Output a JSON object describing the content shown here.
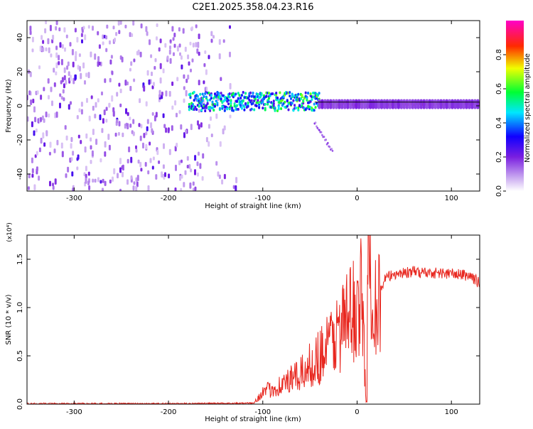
{
  "title": "C2E1.2025.358.04.23.R16",
  "chart_data": [
    {
      "type": "heatmap",
      "xlabel": "Height of straight line (km)",
      "ylabel": "Frequency (Hz)",
      "xlim": [
        -350,
        130
      ],
      "ylim": [
        -50,
        50
      ],
      "xticks": [
        -300,
        -200,
        -100,
        0,
        100
      ],
      "yticks": [
        -40,
        -20,
        0,
        20,
        40
      ],
      "colorbar": {
        "label": "Normalized spectral amplitude",
        "range": [
          0,
          1
        ],
        "ticks": [
          "0.0",
          "0.2",
          "0.4",
          "0.6",
          "0.8"
        ],
        "tick_values": [
          0,
          0.2,
          0.4,
          0.6,
          0.8
        ],
        "colors": [
          "#ffffff",
          "#8a2be2",
          "#0000ff",
          "#00ffff",
          "#00ff00",
          "#ffff00",
          "#ff0000",
          "#ff00ff"
        ]
      },
      "regions": [
        {
          "name": "noise",
          "x_range": [
            -350,
            -130
          ],
          "freq_range": [
            -50,
            50
          ],
          "amplitude": [
            0.05,
            0.25
          ]
        },
        {
          "name": "transition",
          "x_range": [
            -180,
            -40
          ],
          "freq_range": [
            -5,
            8
          ],
          "amplitude": [
            0.2,
            0.6
          ]
        },
        {
          "name": "tail",
          "x_range": [
            -45,
            -25
          ],
          "freq_range": [
            -28,
            -10
          ],
          "amplitude": [
            0.1,
            0.2
          ]
        },
        {
          "name": "signal",
          "x_range": [
            -40,
            130
          ],
          "freq_range": [
            0,
            2
          ],
          "amplitude": [
            0.6,
            1.0
          ]
        }
      ]
    },
    {
      "type": "line",
      "xlabel": "Height of straight line (km)",
      "ylabel": "SNR (10 * v/v)",
      "multiplier": "(x10⁴)",
      "xlim": [
        -350,
        130
      ],
      "ylim": [
        0,
        1.75
      ],
      "xticks": [
        -300,
        -200,
        -100,
        0,
        100
      ],
      "yticks": [
        "0.0",
        "0.5",
        "1.0",
        "1.5"
      ],
      "ytick_values": [
        0,
        0.5,
        1.0,
        1.5
      ],
      "color": "#e8271f",
      "series": [
        {
          "name": "SNR",
          "x": [
            -350,
            -300,
            -200,
            -110,
            -100,
            -80,
            -60,
            -40,
            -20,
            -5,
            5,
            10,
            12,
            20,
            30,
            40,
            60,
            80,
            100,
            120,
            130
          ],
          "y": [
            0.005,
            0.005,
            0.005,
            0.01,
            0.12,
            0.2,
            0.3,
            0.5,
            0.75,
            0.95,
            1.1,
            0.02,
            1.75,
            1.05,
            1.3,
            1.35,
            1.37,
            1.36,
            1.35,
            1.33,
            1.25
          ]
        }
      ]
    }
  ]
}
